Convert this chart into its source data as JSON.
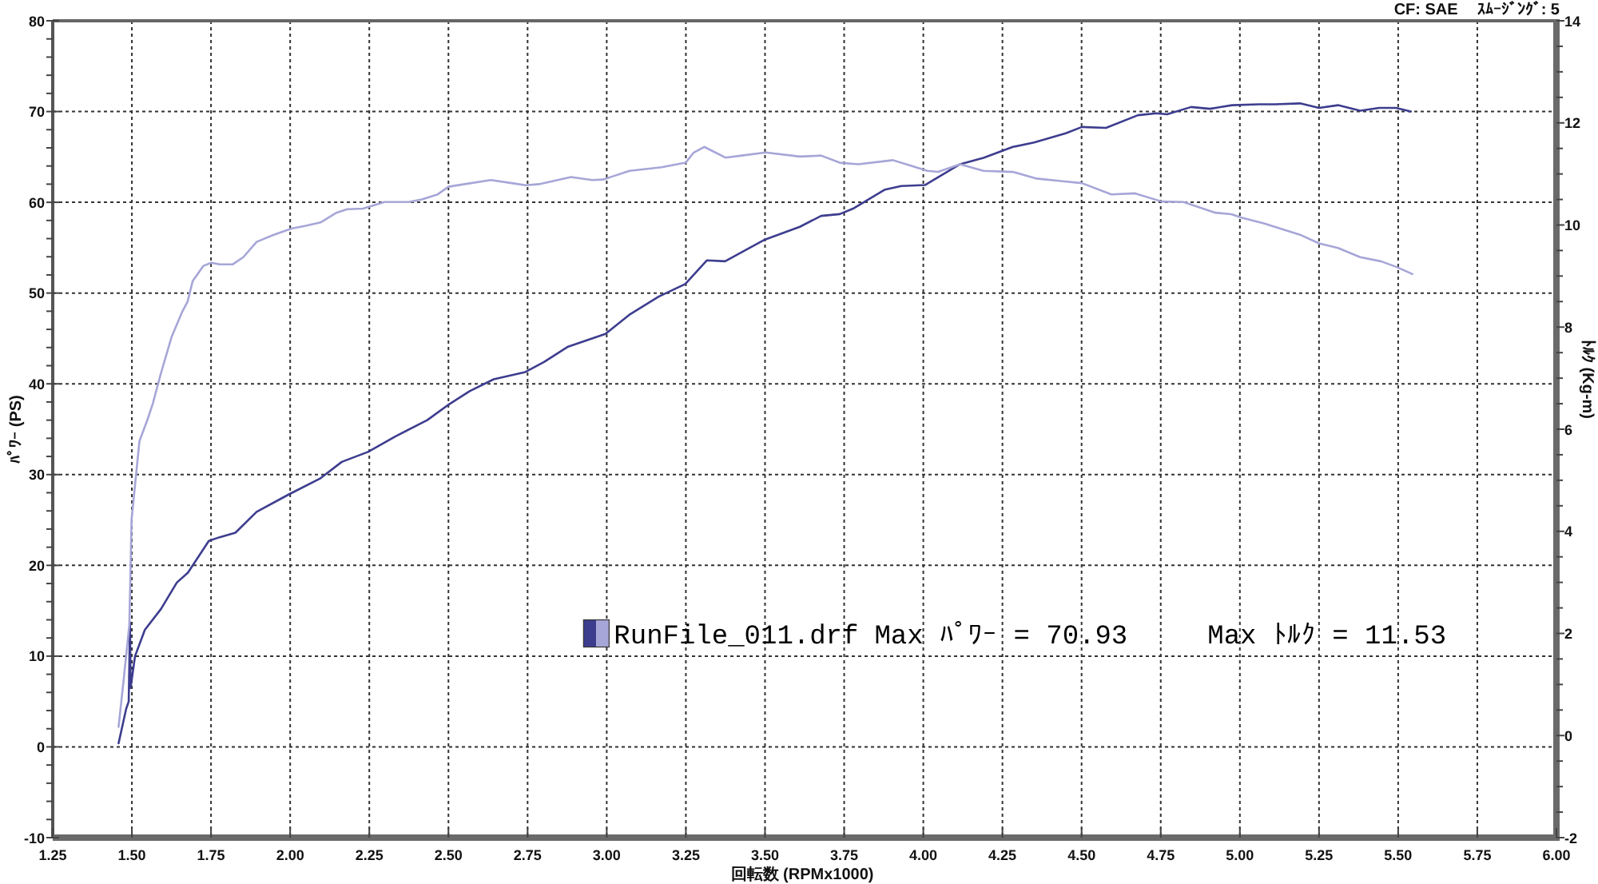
{
  "chart_data": {
    "type": "line",
    "xlabel": "回転数 (RPMx1000)",
    "ylabel": "ﾊﾟﾜｰ (PS)",
    "y2label": "ﾄﾙｸ (Kg-m)",
    "legend": "bottom left",
    "annotations": [
      "CF: SAE",
      "ｽﾑｰｼﾞﾝｸﾞ: 5",
      "Max ﾊﾟﾜｰ = 70.93",
      "Max ﾄﾙｸ = 11.53"
    ],
    "grid": true,
    "xlim": [
      1.25,
      6
    ],
    "xticks": [
      {
        "value": 1.25,
        "label": "1.25"
      },
      {
        "value": 1.5,
        "label": "1.50"
      },
      {
        "value": 1.75,
        "label": "1.75"
      },
      {
        "value": 2,
        "label": "2.00"
      },
      {
        "value": 2.25,
        "label": "2.25"
      },
      {
        "value": 2.5,
        "label": "2.50"
      },
      {
        "value": 2.75,
        "label": "2.75"
      },
      {
        "value": 3,
        "label": "3.00"
      },
      {
        "value": 3.25,
        "label": "3.25"
      },
      {
        "value": 3.5,
        "label": "3.50"
      },
      {
        "value": 3.75,
        "label": "3.75"
      },
      {
        "value": 4,
        "label": "4.00"
      },
      {
        "value": 4.25,
        "label": "4.25"
      },
      {
        "value": 4.5,
        "label": "4.50"
      },
      {
        "value": 4.75,
        "label": "4.75"
      },
      {
        "value": 5,
        "label": "5.00"
      },
      {
        "value": 5.25,
        "label": "5.25"
      },
      {
        "value": 5.5,
        "label": "5.50"
      },
      {
        "value": 5.75,
        "label": "5.75"
      },
      {
        "value": 6,
        "label": "6.00"
      }
    ],
    "ylim": [
      -10,
      80
    ],
    "yticks": [
      -10,
      {
        "value": -8,
        "label": null
      },
      {
        "value": -6,
        "label": null
      },
      {
        "value": -4,
        "label": null
      },
      {
        "value": -2,
        "label": null
      },
      0,
      {
        "value": 2,
        "label": null
      },
      {
        "value": 4,
        "label": null
      },
      {
        "value": 6,
        "label": null
      },
      {
        "value": 8,
        "label": null
      },
      10,
      {
        "value": 12,
        "label": null
      },
      {
        "value": 14,
        "label": null
      },
      {
        "value": 16,
        "label": null
      },
      {
        "value": 18,
        "label": null
      },
      20,
      {
        "value": 22,
        "label": null
      },
      {
        "value": 24,
        "label": null
      },
      {
        "value": 26,
        "label": null
      },
      {
        "value": 28,
        "label": null
      },
      30,
      {
        "value": 32,
        "label": null
      },
      {
        "value": 34,
        "label": null
      },
      {
        "value": 36,
        "label": null
      },
      {
        "value": 38,
        "label": null
      },
      40,
      {
        "value": 42,
        "label": null
      },
      {
        "value": 44,
        "label": null
      },
      {
        "value": 46,
        "label": null
      },
      {
        "value": 48,
        "label": null
      },
      50,
      {
        "value": 52,
        "label": null
      },
      {
        "value": 54,
        "label": null
      },
      {
        "value": 56,
        "label": null
      },
      {
        "value": 58,
        "label": null
      },
      60,
      {
        "value": 62,
        "label": null
      },
      {
        "value": 64,
        "label": null
      },
      {
        "value": 66,
        "label": null
      },
      {
        "value": 68,
        "label": null
      },
      70,
      {
        "value": 72,
        "label": null
      },
      {
        "value": 74,
        "label": null
      },
      {
        "value": 76,
        "label": null
      },
      {
        "value": 78,
        "label": null
      },
      80
    ],
    "y2lim": [
      -2,
      14
    ],
    "y2ticks": [
      -2,
      {
        "value": -1.5,
        "label": null
      },
      {
        "value": -1,
        "label": null
      },
      {
        "value": -0.5,
        "label": null
      },
      0,
      {
        "value": 0.5,
        "label": null
      },
      {
        "value": 1,
        "label": null
      },
      {
        "value": 1.5,
        "label": null
      },
      2,
      {
        "value": 2.5,
        "label": null
      },
      {
        "value": 3,
        "label": null
      },
      {
        "value": 3.5,
        "label": null
      },
      4,
      {
        "value": 4.5,
        "label": null
      },
      {
        "value": 5,
        "label": null
      },
      {
        "value": 5.5,
        "label": null
      },
      6,
      {
        "value": 6.5,
        "label": null
      },
      {
        "value": 7,
        "label": null
      },
      {
        "value": 7.5,
        "label": null
      },
      8,
      {
        "value": 8.5,
        "label": null
      },
      {
        "value": 9,
        "label": null
      },
      {
        "value": 9.5,
        "label": null
      },
      10,
      {
        "value": 10.5,
        "label": null
      },
      {
        "value": 11,
        "label": null
      },
      {
        "value": 11.5,
        "label": null
      },
      12,
      {
        "value": 12.5,
        "label": null
      },
      {
        "value": 13,
        "label": null
      },
      {
        "value": 13.5,
        "label": null
      },
      14
    ],
    "series": [
      {
        "name": "RunFile_011.drf",
        "color": "#3d3d8f",
        "x": [
          1.458,
          1.482,
          1.49,
          1.494,
          1.496,
          1.51,
          1.541,
          1.592,
          1.642,
          1.677,
          1.743,
          1.777,
          1.827,
          1.894,
          1.995,
          2.096,
          2.163,
          2.246,
          2.332,
          2.433,
          2.5,
          2.567,
          2.643,
          2.743,
          2.802,
          2.878,
          2.937,
          2.996,
          3.071,
          3.164,
          3.248,
          3.316,
          3.374,
          3.442,
          3.5,
          3.61,
          3.677,
          3.736,
          3.778,
          3.879,
          3.93,
          4.005,
          4.116,
          4.19,
          4.283,
          4.35,
          4.45,
          4.501,
          4.577,
          4.678,
          4.737,
          4.77,
          4.846,
          4.905,
          4.975,
          5.06,
          5.11,
          5.19,
          5.25,
          5.31,
          5.38,
          5.44,
          5.493,
          5.54
        ],
        "values": [
          0.4,
          4.2,
          5,
          13.7,
          6.5,
          10,
          12.9,
          15.2,
          18.1,
          19.2,
          22.7,
          23.1,
          23.6,
          25.9,
          27.8,
          29.6,
          31.4,
          32.5,
          34.2,
          36,
          37.7,
          39.2,
          40.5,
          41.3,
          42.4,
          44.1,
          44.8,
          45.5,
          47.6,
          49.6,
          51,
          53.6,
          53.5,
          54.8,
          55.9,
          57.3,
          58.5,
          58.7,
          59.3,
          61.4,
          61.8,
          61.9,
          64.2,
          64.9,
          66.1,
          66.6,
          67.6,
          68.3,
          68.2,
          69.6,
          69.8,
          69.7,
          70.5,
          70.3,
          70.7,
          70.8,
          70.8,
          70.9,
          70.4,
          70.7,
          70.1,
          70.4,
          70.4,
          70
        ]
      },
      {
        "color": "#a6a6d8",
        "axis": "y2",
        "x": [
          1.458,
          1.475,
          1.492,
          1.496,
          1.499,
          1.524,
          1.55,
          1.566,
          1.592,
          1.625,
          1.659,
          1.676,
          1.692,
          1.726,
          1.751,
          1.777,
          1.819,
          1.852,
          1.894,
          1.945,
          2.004,
          2.046,
          2.096,
          2.146,
          2.18,
          2.23,
          2.298,
          2.374,
          2.416,
          2.466,
          2.5,
          2.551,
          2.634,
          2.7,
          2.744,
          2.786,
          2.887,
          2.954,
          2.988,
          3.072,
          3.173,
          3.249,
          3.275,
          3.308,
          3.375,
          3.426,
          3.502,
          3.61,
          3.677,
          3.736,
          3.795,
          3.904,
          3.946,
          4.013,
          4.047,
          4.116,
          4.19,
          4.283,
          4.358,
          4.434,
          4.501,
          4.594,
          4.669,
          4.753,
          4.822,
          4.923,
          4.973,
          5.007,
          5.076,
          5.19,
          5.25,
          5.31,
          5.38,
          5.445,
          5.494,
          5.545
        ],
        "values": [
          0.17,
          1.15,
          2.17,
          3.3,
          4.23,
          5.77,
          6.2,
          6.5,
          7.1,
          7.8,
          8.3,
          8.5,
          8.9,
          9.2,
          9.26,
          9.23,
          9.23,
          9.37,
          9.67,
          9.8,
          9.93,
          9.98,
          10.05,
          10.24,
          10.31,
          10.32,
          10.45,
          10.45,
          10.5,
          10.6,
          10.75,
          10.8,
          10.88,
          10.82,
          10.78,
          10.8,
          10.94,
          10.88,
          10.89,
          11.06,
          11.13,
          11.22,
          11.42,
          11.53,
          11.32,
          11.36,
          11.42,
          11.34,
          11.36,
          11.22,
          11.19,
          11.27,
          11.19,
          11.06,
          11.04,
          11.19,
          11.06,
          11.04,
          10.91,
          10.86,
          10.82,
          10.6,
          10.62,
          10.46,
          10.45,
          10.24,
          10.21,
          10.14,
          10.03,
          9.81,
          9.64,
          9.55,
          9.37,
          9.29,
          9.18,
          9.04
        ]
      }
    ]
  }
}
